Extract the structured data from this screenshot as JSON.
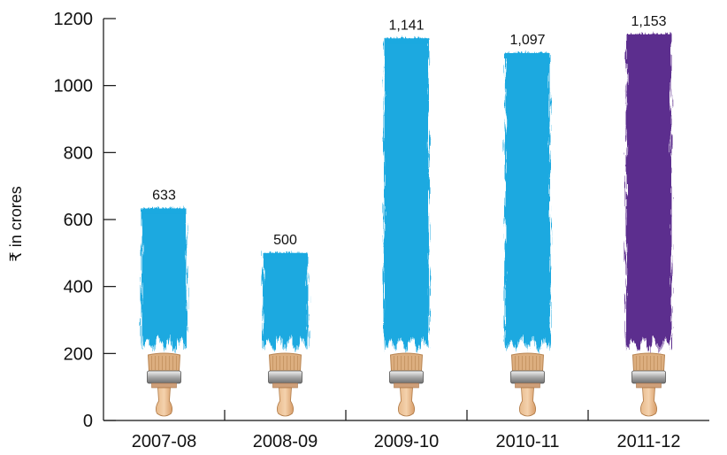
{
  "chart_data": {
    "type": "bar",
    "categories": [
      "2007-08",
      "2008-09",
      "2009-10",
      "2010-11",
      "2011-12"
    ],
    "values": [
      633,
      500,
      1141,
      1097,
      1153
    ],
    "value_labels": [
      "633",
      "500",
      "1,141",
      "1,097",
      "1,153"
    ],
    "bar_colors": [
      "#1aa9e0",
      "#1aa9e0",
      "#1aa9e0",
      "#1aa9e0",
      "#5b2d8e"
    ],
    "ylabel": "₹ in crores",
    "xlabel": "",
    "title": "",
    "ylim": [
      0,
      1200
    ],
    "yticks": [
      0,
      200,
      400,
      600,
      800,
      1000,
      1200
    ],
    "grid": false,
    "legend": "none",
    "bar_style": "paint brush strokes",
    "icon": "paint-brush-icon"
  }
}
